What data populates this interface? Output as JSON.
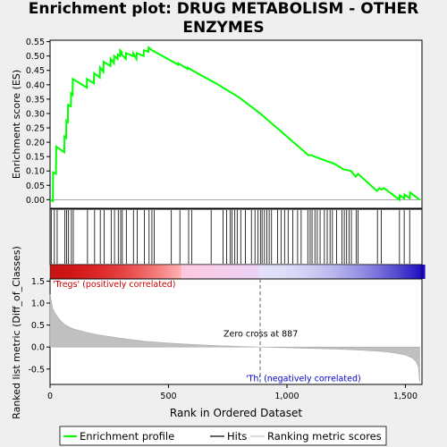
{
  "chart_data": {
    "type": "line",
    "title": "Enrichment plot: DRUG METABOLISM - OTHER ENZYMES",
    "xlabel": "Rank in Ordered Dataset",
    "xlim": [
      0,
      1570
    ],
    "x_ticks": [
      0,
      500,
      1000,
      1500
    ],
    "x_tick_labels": [
      "0",
      "500",
      "1,000",
      "1,500"
    ],
    "top_panel": {
      "ylabel": "Enrichment score (ES)",
      "ylim": [
        -0.03,
        0.555
      ],
      "y_ticks": [
        0.0,
        0.05,
        0.1,
        0.15,
        0.2,
        0.25,
        0.3,
        0.35,
        0.4,
        0.45,
        0.5,
        0.55
      ],
      "y_tick_labels": [
        "0.00",
        "0.05",
        "0.10",
        "0.15",
        "0.20",
        "0.25",
        "0.30",
        "0.35",
        "0.40",
        "0.45",
        "0.50",
        "0.55"
      ],
      "series": [
        {
          "name": "Enrichment profile",
          "color": "#00ff00",
          "x": [
            0,
            12,
            13,
            25,
            26,
            60,
            61,
            68,
            69,
            75,
            76,
            88,
            89,
            95,
            96,
            155,
            156,
            185,
            186,
            210,
            211,
            225,
            226,
            255,
            256,
            270,
            271,
            285,
            286,
            295,
            296,
            302,
            303,
            320,
            321,
            350,
            351,
            365,
            366,
            395,
            396,
            415,
            416,
            430,
            431,
            540,
            541,
            580,
            581,
            600,
            700,
            800,
            887,
            1000,
            1090,
            1100,
            1150,
            1200,
            1240,
            1270,
            1280,
            1290,
            1300,
            1380,
            1390,
            1400,
            1410,
            1475,
            1476,
            1495,
            1496,
            1518,
            1520,
            1560
          ],
          "y": [
            0.0,
            -0.005,
            0.095,
            0.09,
            0.185,
            0.165,
            0.22,
            0.215,
            0.275,
            0.27,
            0.33,
            0.325,
            0.37,
            0.365,
            0.42,
            0.39,
            0.42,
            0.405,
            0.44,
            0.425,
            0.46,
            0.445,
            0.48,
            0.465,
            0.49,
            0.475,
            0.5,
            0.49,
            0.505,
            0.5,
            0.52,
            0.515,
            0.505,
            0.49,
            0.51,
            0.5,
            0.51,
            0.49,
            0.51,
            0.5,
            0.52,
            0.515,
            0.53,
            0.52,
            0.52,
            0.47,
            0.475,
            0.455,
            0.46,
            0.45,
            0.405,
            0.355,
            0.3,
            0.22,
            0.155,
            0.155,
            0.14,
            0.125,
            0.105,
            0.1,
            0.09,
            0.08,
            0.09,
            0.03,
            0.04,
            0.035,
            0.04,
            0.0,
            0.015,
            0.005,
            0.018,
            0.005,
            0.025,
            0.0
          ]
        }
      ]
    },
    "hits": {
      "name": "Hits",
      "positions": [
        5,
        18,
        30,
        62,
        70,
        78,
        90,
        98,
        158,
        188,
        212,
        228,
        258,
        272,
        288,
        298,
        305,
        322,
        352,
        368,
        398,
        418,
        430,
        440,
        512,
        548,
        585,
        598,
        680,
        730,
        745,
        760,
        768,
        780,
        790,
        805,
        825,
        850,
        865,
        878,
        888,
        895,
        905,
        915,
        925,
        935,
        960,
        975,
        990,
        1005,
        1025,
        1045,
        1060,
        1088,
        1098,
        1106,
        1118,
        1128,
        1140,
        1158,
        1170,
        1182,
        1192,
        1210,
        1232,
        1242,
        1252,
        1262,
        1272,
        1292,
        1300,
        1382,
        1398,
        1475,
        1495,
        1518
      ]
    },
    "bottom_panel": {
      "ylabel": "Ranked list metric (Diff_of_Classes)",
      "ylim": [
        -0.85,
        1.55
      ],
      "y_ticks": [
        -0.5,
        0.0,
        0.5,
        1.0,
        1.5
      ],
      "y_tick_labels": [
        "-0.5",
        "0.0",
        "0.5",
        "1.0",
        "1.5"
      ],
      "metric_profile": {
        "name": "Ranking metric scores",
        "color": "#c0c0c0",
        "x": [
          0,
          5,
          10,
          20,
          30,
          45,
          60,
          80,
          100,
          150,
          200,
          300,
          400,
          500,
          600,
          700,
          800,
          887,
          1000,
          1100,
          1200,
          1300,
          1400,
          1450,
          1500,
          1530,
          1545,
          1555,
          1560
        ],
        "y": [
          1.2,
          1.05,
          0.9,
          0.78,
          0.7,
          0.6,
          0.52,
          0.46,
          0.41,
          0.34,
          0.28,
          0.2,
          0.13,
          0.09,
          0.06,
          0.035,
          0.015,
          0.0,
          -0.015,
          -0.03,
          -0.045,
          -0.065,
          -0.1,
          -0.13,
          -0.18,
          -0.25,
          -0.33,
          -0.45,
          -0.8
        ]
      },
      "annotations": [
        {
          "text": "'Tregs' (positively correlated)",
          "color": "#cc0000"
        },
        {
          "text": "Zero cross at 887",
          "color": "#000000"
        },
        {
          "text": "'Th' (negatively correlated)",
          "color": "#0000cc"
        }
      ],
      "zero_cross": 887
    },
    "legend": {
      "placement": "bottom",
      "entries": [
        {
          "name": "Enrichment profile",
          "color": "#00ff00"
        },
        {
          "name": "Hits",
          "color": "#000000"
        },
        {
          "name": "Ranking metric scores",
          "color": "#c0c0c0"
        }
      ]
    }
  }
}
